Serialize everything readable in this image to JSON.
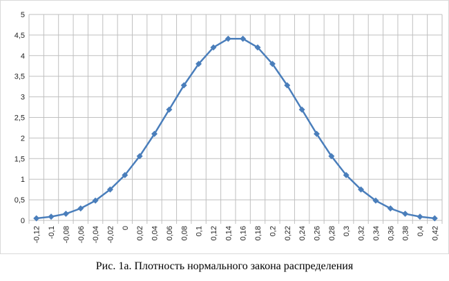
{
  "chart_data": {
    "type": "line",
    "caption": "Рис. 1а. Плотность нормального закона распределения",
    "categories": [
      "-0,12",
      "-0,1",
      "-0,08",
      "-0,06",
      "-0,04",
      "-0,02",
      "0",
      "0,02",
      "0,04",
      "0,06",
      "0,08",
      "0,1",
      "0,12",
      "0,14",
      "0,16",
      "0,18",
      "0,2",
      "0,22",
      "0,24",
      "0,26",
      "0,28",
      "0,3",
      "0,32",
      "0,34",
      "0,36",
      "0,38",
      "0,4",
      "0,42"
    ],
    "series": [
      {
        "color": "#4a7ebb",
        "values": [
          0.05,
          0.09,
          0.16,
          0.29,
          0.48,
          0.75,
          1.1,
          1.56,
          2.1,
          2.69,
          3.28,
          3.8,
          4.2,
          4.41,
          4.41,
          4.2,
          3.8,
          3.28,
          2.69,
          2.1,
          1.56,
          1.1,
          0.75,
          0.48,
          0.29,
          0.16,
          0.09,
          0.05
        ]
      }
    ],
    "ylim": [
      0,
      5
    ],
    "yticks": [
      0,
      {
        "value": 0.5,
        "label": "0,5"
      },
      1,
      {
        "value": 1.5,
        "label": "1,5"
      },
      2,
      {
        "value": 2.5,
        "label": "2,5"
      },
      3,
      {
        "value": 3.5,
        "label": "3,5"
      },
      4,
      {
        "value": 4.5,
        "label": "4,5"
      },
      5
    ],
    "grid": true
  }
}
